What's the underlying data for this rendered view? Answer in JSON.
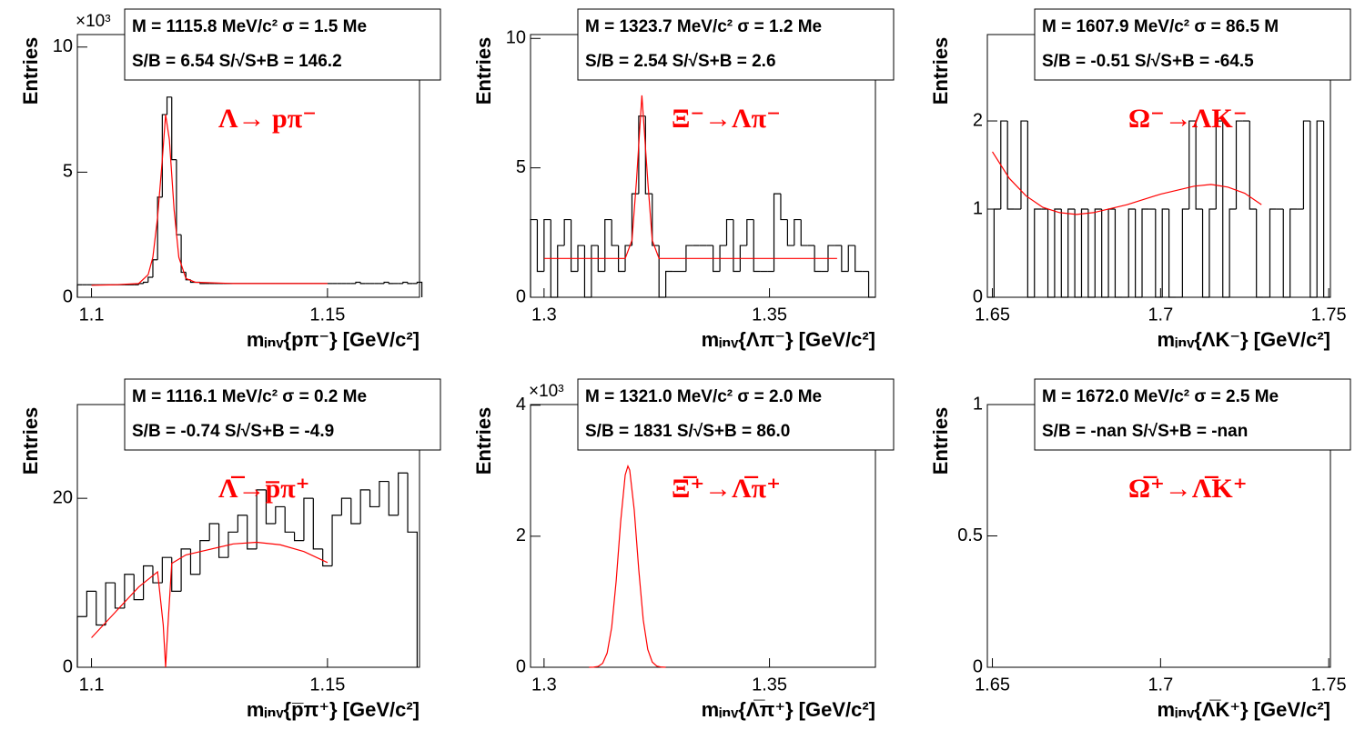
{
  "chart_data": [
    {
      "type": "histogram",
      "annotation": "Λ→ pπ⁻",
      "y_label": "Entries",
      "x_label": "mᵢₙᵥ{pπ⁻} [GeV/c²]",
      "y_multiplier": "×10³",
      "stats": [
        "M = 1115.8 MeV/c² σ = 1.5 Me",
        "S/B = 6.54   S/√S+B = 146.2"
      ],
      "xlim": [
        1.097,
        1.1695
      ],
      "ylim": [
        0,
        10.5
      ],
      "xticks": [
        1.1,
        1.15
      ],
      "yticks": [
        0,
        5,
        10
      ],
      "color": "#000000",
      "bins": [
        1.097,
        1.098,
        1.099,
        1.1,
        1.101,
        1.102,
        1.103,
        1.104,
        1.105,
        1.106,
        1.107,
        1.108,
        1.109,
        1.11,
        1.111,
        1.112,
        1.113,
        1.114,
        1.115,
        1.116,
        1.117,
        1.118,
        1.119,
        1.12,
        1.121,
        1.122,
        1.123,
        1.124,
        1.125,
        1.126,
        1.127,
        1.128,
        1.129,
        1.13,
        1.131,
        1.132,
        1.133,
        1.134,
        1.135,
        1.136,
        1.137,
        1.138,
        1.139,
        1.14,
        1.141,
        1.142,
        1.143,
        1.144,
        1.145,
        1.146,
        1.147,
        1.148,
        1.149,
        1.15,
        1.151,
        1.152,
        1.153,
        1.154,
        1.155,
        1.156,
        1.157,
        1.158,
        1.159,
        1.16,
        1.161,
        1.162,
        1.163,
        1.164,
        1.165,
        1.166,
        1.167,
        1.168,
        1.169,
        1.17
      ],
      "counts": [
        0.5,
        0.5,
        0.5,
        0.5,
        0.5,
        0.5,
        0.5,
        0.5,
        0.5,
        0.5,
        0.5,
        0.5,
        0.5,
        0.55,
        0.6,
        0.8,
        1.5,
        4.0,
        7.3,
        8.0,
        5.5,
        2.5,
        1.0,
        0.7,
        0.6,
        0.6,
        0.55,
        0.55,
        0.55,
        0.55,
        0.55,
        0.55,
        0.55,
        0.55,
        0.55,
        0.55,
        0.55,
        0.55,
        0.55,
        0.55,
        0.55,
        0.55,
        0.55,
        0.55,
        0.55,
        0.55,
        0.55,
        0.55,
        0.55,
        0.55,
        0.55,
        0.55,
        0.55,
        0.55,
        0.55,
        0.55,
        0.55,
        0.55,
        0.55,
        0.6,
        0.55,
        0.55,
        0.55,
        0.55,
        0.55,
        0.6,
        0.55,
        0.55,
        0.55,
        0.6,
        0.55,
        0.55,
        0.6
      ],
      "fit": {
        "color": "#ff0000",
        "x": [
          1.1,
          1.105,
          1.11,
          1.112,
          1.113,
          1.114,
          1.115,
          1.1157,
          1.1165,
          1.1175,
          1.1185,
          1.12,
          1.122,
          1.13,
          1.15
        ],
        "y": [
          0.48,
          0.5,
          0.55,
          0.9,
          1.6,
          3.2,
          5.5,
          7.3,
          6.3,
          3.5,
          1.6,
          0.75,
          0.6,
          0.55,
          0.55
        ]
      }
    },
    {
      "type": "histogram",
      "annotation": "Ξ⁻→Λπ⁻",
      "y_label": "Entries",
      "x_label": "mᵢₙᵥ{Λπ⁻} [GeV/c²]",
      "stats": [
        "M = 1323.7 MeV/c² σ = 1.2 Me",
        "S/B = 2.54   S/√S+B = 2.6"
      ],
      "xlim": [
        1.297,
        1.3735
      ],
      "ylim": [
        0,
        10.15
      ],
      "xticks": [
        1.3,
        1.35
      ],
      "yticks": [
        0,
        5,
        10
      ],
      "color": "#000000",
      "bins": [
        1.297,
        1.2985,
        1.3,
        1.3015,
        1.303,
        1.3045,
        1.306,
        1.3075,
        1.309,
        1.3105,
        1.312,
        1.3135,
        1.315,
        1.3165,
        1.318,
        1.3195,
        1.321,
        1.3225,
        1.324,
        1.3255,
        1.327,
        1.3285,
        1.33,
        1.3315,
        1.333,
        1.3345,
        1.336,
        1.3375,
        1.339,
        1.3405,
        1.342,
        1.3435,
        1.345,
        1.3465,
        1.348,
        1.3495,
        1.351,
        1.3525,
        1.354,
        1.3555,
        1.357,
        1.3585,
        1.36,
        1.3615,
        1.363,
        1.3645,
        1.366,
        1.3675,
        1.369,
        1.3705,
        1.372,
        1.3735
      ],
      "counts": [
        3,
        1,
        3,
        0,
        2,
        3,
        1,
        2,
        0,
        2,
        1,
        3,
        2,
        1,
        2,
        4,
        7,
        4,
        2,
        0,
        1,
        1,
        1,
        2,
        2,
        2,
        2,
        1,
        2,
        3,
        1,
        2,
        3,
        1,
        1,
        1,
        4,
        3,
        2,
        3,
        2,
        2,
        1,
        1,
        2,
        2,
        1,
        2,
        1,
        1,
        0
      ],
      "fit": {
        "color": "#ff0000",
        "x": [
          1.3,
          1.318,
          1.3195,
          1.3205,
          1.3217,
          1.323,
          1.324,
          1.3255,
          1.365
        ],
        "y": [
          1.5,
          1.5,
          2.2,
          4.5,
          7.8,
          4.5,
          2.2,
          1.5,
          1.5
        ]
      }
    },
    {
      "type": "histogram",
      "annotation": "Ω⁻→ΛK⁻",
      "y_label": "Entries",
      "x_label": "mᵢₙᵥ{ΛK⁻} [GeV/c²]",
      "stats": [
        "M = 1607.9 MeV/c² σ = 86.5 M",
        "S/B = -0.51   S/√S+B = -64.5"
      ],
      "xlim": [
        1.6485,
        1.7505
      ],
      "ylim": [
        0,
        2.98
      ],
      "xticks": [
        1.65,
        1.7,
        1.75
      ],
      "yticks": [
        0,
        1,
        2
      ],
      "color": "#000000",
      "bins": [
        1.6485,
        1.6505,
        1.6525,
        1.6545,
        1.6565,
        1.6585,
        1.6605,
        1.6625,
        1.6645,
        1.6665,
        1.6685,
        1.6705,
        1.6725,
        1.6745,
        1.6765,
        1.6785,
        1.6805,
        1.6825,
        1.6845,
        1.6865,
        1.6885,
        1.6905,
        1.6925,
        1.6945,
        1.6965,
        1.6985,
        1.7005,
        1.7025,
        1.7045,
        1.7065,
        1.7085,
        1.7105,
        1.7125,
        1.7145,
        1.7165,
        1.7185,
        1.7205,
        1.7225,
        1.7245,
        1.7265,
        1.7285,
        1.7305,
        1.7325,
        1.7345,
        1.7365,
        1.7385,
        1.7405,
        1.7425,
        1.7445,
        1.7465,
        1.7485,
        1.7505
      ],
      "counts": [
        0,
        1,
        2,
        1,
        1,
        2,
        0,
        1,
        1,
        0,
        1,
        0,
        1,
        0,
        1,
        0,
        1,
        0,
        1,
        0,
        0,
        1,
        0,
        1,
        1,
        0,
        1,
        0,
        0,
        1,
        2,
        1,
        0,
        1,
        2,
        0,
        1,
        2,
        2,
        1,
        0,
        0,
        1,
        1,
        0,
        1,
        1,
        2,
        0,
        2,
        0
      ],
      "fit": {
        "color": "#ff0000",
        "x": [
          1.65,
          1.655,
          1.66,
          1.665,
          1.67,
          1.675,
          1.68,
          1.69,
          1.7,
          1.71,
          1.715,
          1.72,
          1.725,
          1.73
        ],
        "y": [
          1.65,
          1.35,
          1.15,
          1.02,
          0.96,
          0.94,
          0.96,
          1.05,
          1.17,
          1.26,
          1.28,
          1.25,
          1.18,
          1.05
        ]
      }
    },
    {
      "type": "histogram",
      "annotation": "Λ̅→p̅π⁺",
      "y_label": "Entries",
      "x_label": "mᵢₙᵥ{p̅π⁺} [GeV/c²]",
      "stats": [
        "M = 1116.1 MeV/c² σ = 0.2 Me",
        "S/B = -0.74   S/√S+B = -4.9"
      ],
      "xlim": [
        1.097,
        1.1695
      ],
      "ylim": [
        0,
        31.1
      ],
      "xticks": [
        1.1,
        1.15
      ],
      "yticks": [
        0,
        20
      ],
      "color": "#000000",
      "bins": [
        1.097,
        1.099,
        1.101,
        1.103,
        1.105,
        1.107,
        1.109,
        1.111,
        1.113,
        1.115,
        1.117,
        1.119,
        1.121,
        1.123,
        1.125,
        1.127,
        1.129,
        1.131,
        1.133,
        1.135,
        1.137,
        1.139,
        1.141,
        1.143,
        1.145,
        1.147,
        1.149,
        1.151,
        1.153,
        1.155,
        1.157,
        1.159,
        1.161,
        1.163,
        1.165,
        1.167,
        1.169
      ],
      "counts": [
        6,
        9,
        5,
        10,
        7,
        11,
        8,
        12,
        10,
        13,
        9,
        14,
        11,
        15,
        17,
        13,
        16,
        18,
        14,
        21,
        17,
        19,
        16,
        15,
        20,
        14,
        12,
        18,
        20,
        17,
        21,
        19,
        22,
        18,
        23,
        16
      ],
      "fit": {
        "color": "#ff0000",
        "x": [
          1.1,
          1.105,
          1.11,
          1.114,
          1.1152,
          1.1157,
          1.1162,
          1.117,
          1.12,
          1.13,
          1.135,
          1.14,
          1.145,
          1.15
        ],
        "y": [
          3.5,
          6.5,
          9.5,
          11.3,
          5,
          0,
          5,
          12.3,
          13.3,
          14.6,
          14.8,
          14.5,
          13.7,
          12.4
        ]
      }
    },
    {
      "type": "histogram",
      "annotation": "Ξ̅⁺→Λ̅π⁺",
      "y_label": "Entries",
      "x_label": "mᵢₙᵥ{Λ̅π⁺} [GeV/c²]",
      "y_multiplier": "×10³",
      "stats": [
        "M = 1321.0 MeV/c² σ = 2.0 Me",
        "S/B = 1831   S/√S+B = 86.0"
      ],
      "xlim": [
        1.297,
        1.3735
      ],
      "ylim": [
        0,
        4.01
      ],
      "xticks": [
        1.3,
        1.35
      ],
      "yticks": [
        0,
        2,
        4
      ],
      "color": "#000000",
      "fit": {
        "color": "#ff0000",
        "x": [
          1.31,
          1.311,
          1.312,
          1.313,
          1.314,
          1.315,
          1.316,
          1.317,
          1.318,
          1.3186,
          1.319,
          1.32,
          1.321,
          1.322,
          1.323,
          1.324,
          1.325,
          1.326,
          1.327
        ],
        "y": [
          0,
          0.002,
          0.013,
          0.061,
          0.218,
          0.608,
          1.319,
          2.229,
          2.935,
          3.07,
          3.009,
          2.403,
          1.494,
          0.724,
          0.273,
          0.08,
          0.018,
          0.003,
          0
        ]
      }
    },
    {
      "type": "histogram",
      "annotation": "Ω̅⁺→Λ̅K⁺",
      "y_label": "Entries",
      "x_label": "mᵢₙᵥ{Λ̅K⁺} [GeV/c²]",
      "stats": [
        "M = 1672.0 MeV/c² σ = 2.5 Me",
        "S/B = -nan   S/√S+B = -nan"
      ],
      "xlim": [
        1.6485,
        1.7505
      ],
      "ylim": [
        0,
        1
      ],
      "xticks": [
        1.65,
        1.7,
        1.75
      ],
      "yticks": [
        0,
        0.5,
        1
      ],
      "color": "#000000"
    }
  ]
}
